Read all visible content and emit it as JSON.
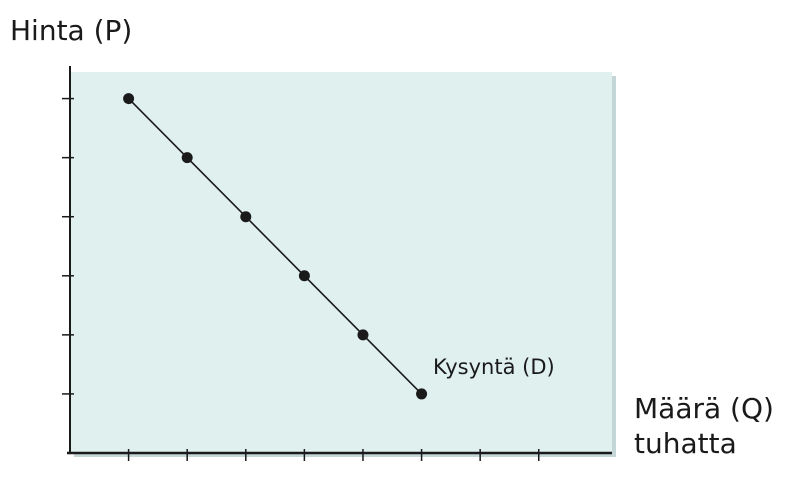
{
  "chart_data": {
    "type": "line",
    "ylabel": "Hinta (P)",
    "xlabel_line1": "Määrä (Q)",
    "xlabel_line2": "tuhatta",
    "series": [
      {
        "name": "Kysyntä (D)",
        "x": [
          1,
          2,
          3,
          4,
          5,
          6
        ],
        "y": [
          6,
          5,
          4,
          3,
          2,
          1
        ]
      }
    ],
    "xlim": [
      0,
      9.25
    ],
    "ylim": [
      0,
      6.45
    ],
    "x_ticks": [
      1,
      2,
      3,
      4,
      5,
      6,
      7,
      8
    ],
    "y_ticks": [
      1,
      2,
      3,
      4,
      5,
      6
    ],
    "colors": {
      "plot_background": "#dff0ef",
      "plot_shadow": "#c4d6d6",
      "line": "#1a1a1a",
      "axis": "#1a1a1a"
    },
    "grid": false
  }
}
